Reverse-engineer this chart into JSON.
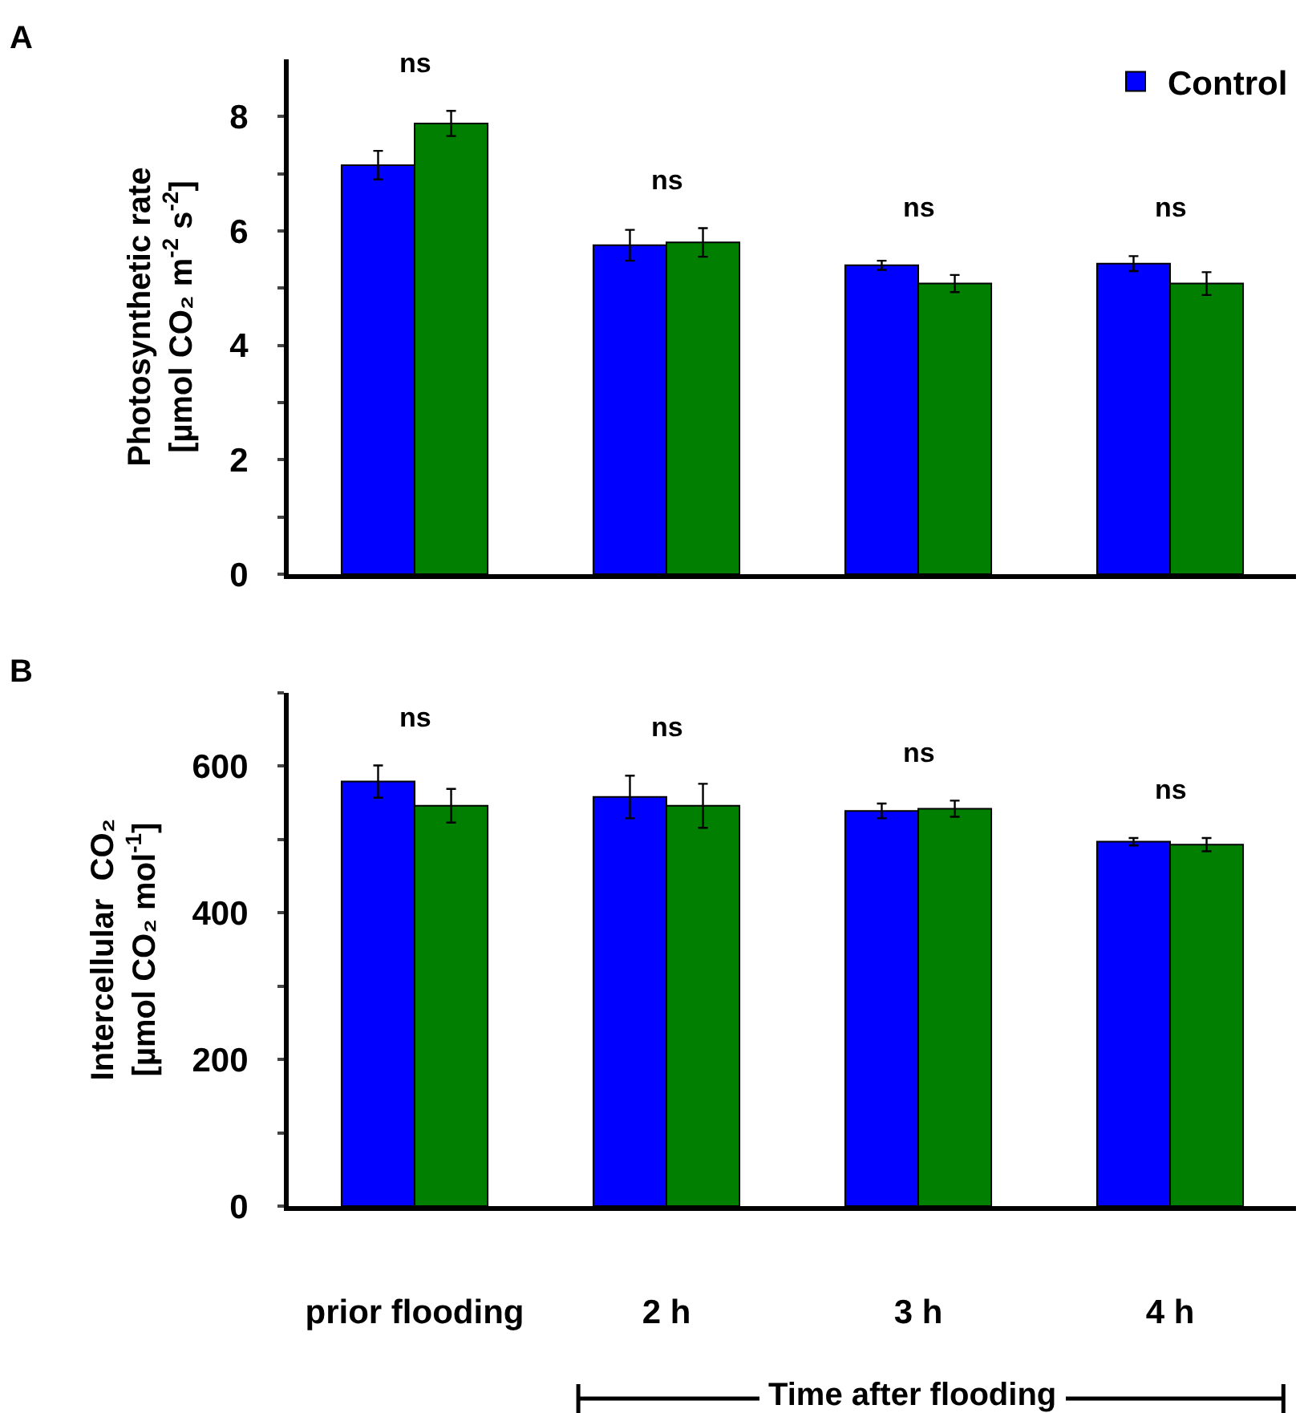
{
  "chart_data": [
    {
      "type": "bar",
      "categories": [
        null,
        null,
        null,
        null
      ],
      "ylabel": "Photosynthetic rate\n[µmol CO₂ m$^{-2}$ s$^{-2}$]",
      "ylim": [
        0,
        9
      ],
      "yticks": [
        0,
        {
          "value": 1,
          "label": null
        },
        2,
        {
          "value": 3,
          "label": null
        },
        4,
        {
          "value": 5,
          "label": null
        },
        6,
        {
          "value": 7,
          "label": null
        },
        8
      ],
      "tick_labels": "y",
      "legend": "top right",
      "grid": false,
      "series": [
        {
          "name": "Control",
          "color": "#0000ff",
          "values": [
            7.15,
            5.75,
            5.4,
            5.43
          ],
          "errors": [
            0.25,
            0.27,
            0.08,
            0.13
          ]
        },
        {
          "color": "#007f00",
          "values": [
            7.88,
            5.8,
            5.08,
            5.08
          ],
          "errors": [
            0.22,
            0.25,
            0.15,
            0.2
          ]
        }
      ],
      "annotations": [
        "A",
        "ns",
        "ns",
        "ns",
        "ns"
      ]
    },
    {
      "type": "bar",
      "categories": [
        "prior flooding",
        "2 h",
        "3 h",
        "4 h"
      ],
      "ylabel": "Intercellular  CO₂\n[µmol CO₂ mol$^{-1}$]",
      "ylim": [
        0,
        700
      ],
      "yticks": [
        0,
        {
          "value": 100,
          "label": null
        },
        200,
        {
          "value": 300,
          "label": null
        },
        400,
        {
          "value": 500,
          "label": null
        },
        600,
        {
          "value": 700,
          "label": null
        }
      ],
      "grid": false,
      "series": [
        {
          "color": "#0000ff",
          "values": [
            579,
            558,
            539,
            497
          ],
          "errors": [
            22,
            29,
            10,
            5
          ]
        },
        {
          "color": "#007f00",
          "values": [
            546,
            546,
            542,
            493
          ],
          "errors": [
            23,
            30,
            11,
            9
          ]
        }
      ],
      "annotations": [
        "B",
        "ns",
        "ns",
        "ns",
        "ns",
        "Time after flooding"
      ]
    }
  ]
}
